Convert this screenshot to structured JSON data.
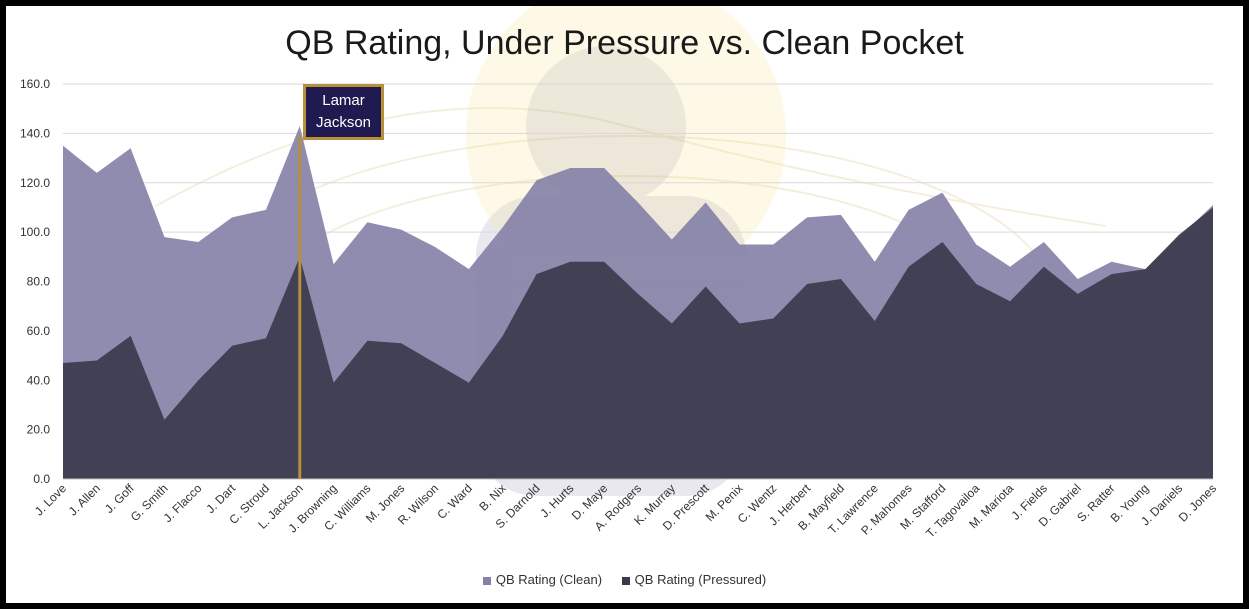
{
  "chart_data": {
    "type": "area",
    "title": "QB Rating, Under Pressure vs. Clean Pocket",
    "categories": [
      "J. Love",
      "J. Allen",
      "J. Goff",
      "G. Smith",
      "J. Flacco",
      "J. Dart",
      "C. Stroud",
      "L. Jackson",
      "J. Browning",
      "C. Williams",
      "M. Jones",
      "R. Wilson",
      "C. Ward",
      "B. Nix",
      "S. Darnold",
      "J. Hurts",
      "D. Maye",
      "A. Rodgers",
      "K. Murray",
      "D. Prescott",
      "M. Penix",
      "C. Wentz",
      "J. Herbert",
      "B. Mayfield",
      "T. Lawrence",
      "P. Mahomes",
      "M. Stafford",
      "T. Tagovailoa",
      "M. Mariota",
      "J. Fields",
      "D. Gabriel",
      "S. Ratter",
      "B. Young",
      "J. Daniels",
      "D. Jones"
    ],
    "series": [
      {
        "name": "QB Rating (Clean)",
        "color": "#8582a8",
        "values": [
          135,
          124,
          134,
          98,
          96,
          106,
          109,
          143,
          87,
          104,
          101,
          94,
          85,
          102,
          121,
          126,
          126,
          112,
          97,
          112,
          95,
          95,
          106,
          107,
          88,
          109,
          116,
          95,
          86,
          96,
          81,
          88,
          85,
          98,
          111
        ]
      },
      {
        "name": "QB Rating (Pressured)",
        "color": "#3b3a4d",
        "values": [
          47,
          48,
          58,
          24,
          40,
          54,
          57,
          90,
          39,
          56,
          55,
          47,
          39,
          58,
          83,
          88,
          88,
          75,
          63,
          78,
          63,
          65,
          79,
          81,
          64,
          86,
          96,
          79,
          72,
          86,
          75,
          83,
          85,
          99,
          110
        ]
      }
    ],
    "yticks": [
      "0.0",
      "20.0",
      "40.0",
      "60.0",
      "80.0",
      "100.0",
      "120.0",
      "140.0",
      "160.0"
    ],
    "ylim": [
      0,
      160
    ],
    "grid": true,
    "legend": "bottom",
    "highlight": {
      "category": "L. Jackson",
      "label_line1": "Lamar",
      "label_line2": "Jackson",
      "color": "#b8903a"
    }
  }
}
